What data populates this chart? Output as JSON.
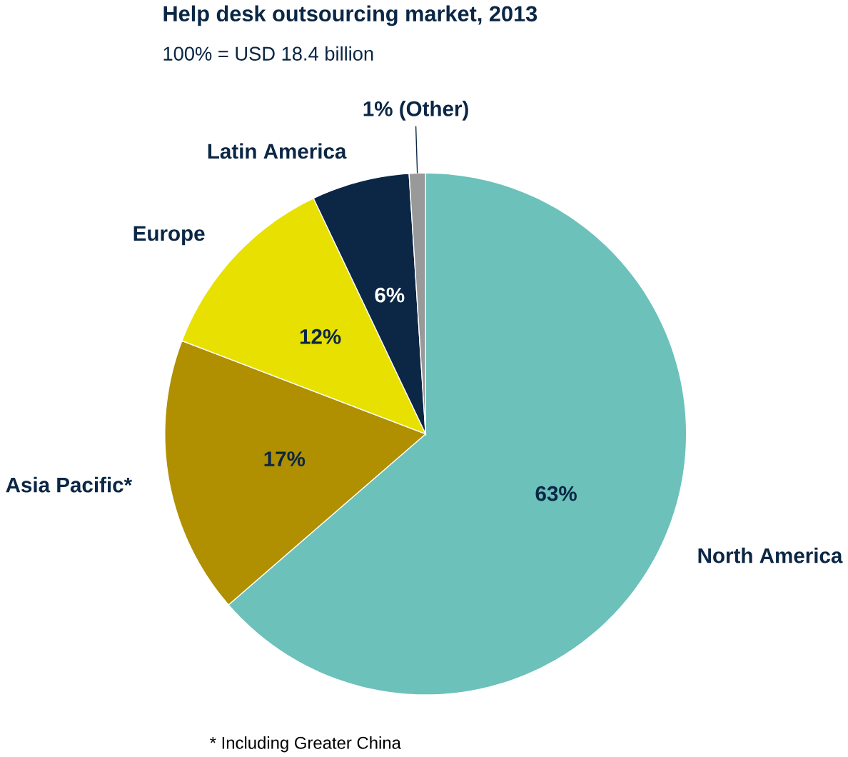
{
  "chart_data": {
    "type": "pie",
    "title": "Help desk outsourcing market, 2013",
    "subtitle": "100% = USD 18.4 billion",
    "categories": [
      "North America",
      "Asia Pacific*",
      "Europe",
      "Latin America",
      null
    ],
    "values": [
      63,
      17,
      12,
      6,
      1
    ],
    "value_labels": [
      "63%",
      "17%",
      "12%",
      "6%",
      "1% (Other)"
    ],
    "colors": [
      "#6cc1ba",
      "#b08f00",
      "#e8e000",
      "#0b2745",
      "#999999"
    ],
    "annotations": [
      "* Including Greater China"
    ]
  }
}
